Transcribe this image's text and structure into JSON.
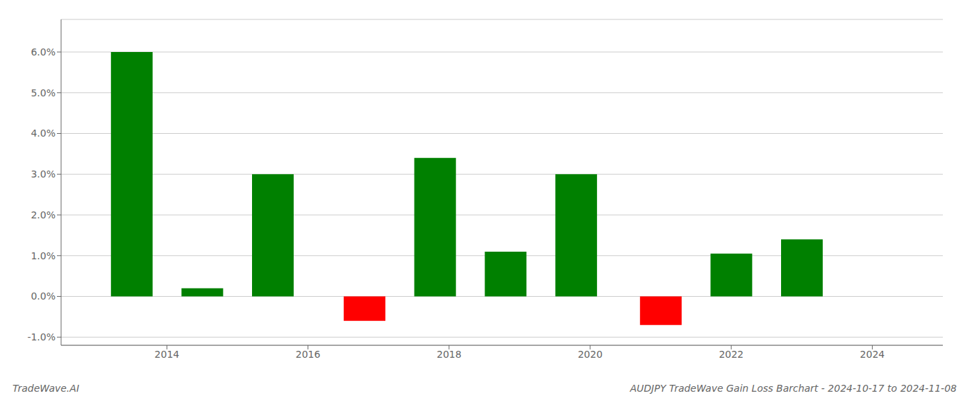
{
  "chart_data": {
    "type": "bar",
    "title": "AUDJPY TradeWave Gain Loss Barchart - 2024-10-17 to 2024-11-08",
    "annotations": [
      "TradeWave.AI"
    ],
    "x": [
      2013.5,
      2014.5,
      2015.5,
      2016.8,
      2017.8,
      2018.8,
      2019.8,
      2021.0,
      2022.0,
      2023.0
    ],
    "values": [
      0.06,
      0.002,
      0.03,
      -0.006,
      0.034,
      0.011,
      0.03,
      -0.007,
      0.0105,
      0.014
    ],
    "colors": [
      "#008000",
      "#008000",
      "#008000",
      "#ff0000",
      "#008000",
      "#008000",
      "#008000",
      "#ff0000",
      "#008000",
      "#008000"
    ],
    "xlim": [
      2012.5,
      2025.0
    ],
    "xticks": [
      2014,
      2016,
      2018,
      2020,
      2022,
      2024
    ],
    "ylim": [
      -0.012,
      0.068
    ],
    "yticks": [
      {
        "value": -0.01,
        "label": "-1.0%"
      },
      {
        "value": 0.0,
        "label": "0.0%"
      },
      {
        "value": 0.01,
        "label": "1.0%"
      },
      {
        "value": 0.02,
        "label": "2.0%"
      },
      {
        "value": 0.03,
        "label": "3.0%"
      },
      {
        "value": 0.04,
        "label": "4.0%"
      },
      {
        "value": 0.05,
        "label": "5.0%"
      },
      {
        "value": 0.06,
        "label": "6.0%"
      }
    ],
    "grid": true
  }
}
